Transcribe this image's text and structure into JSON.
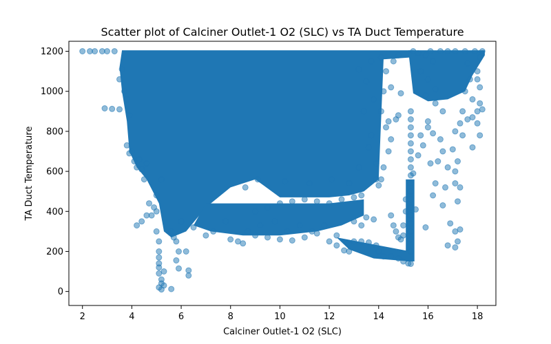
{
  "chart_data": {
    "type": "scatter",
    "title": "Scatter plot of Calciner Outlet-1 O2 (SLC) vs TA Duct Temperature",
    "xlabel": "Calciner Outlet-1 O2 (SLC)",
    "ylabel": "TA Duct Temperature",
    "xlim": [
      1.45,
      18.75
    ],
    "ylim": [
      -70,
      1250
    ],
    "xticks": [
      2,
      4,
      6,
      8,
      10,
      12,
      14,
      16,
      18
    ],
    "yticks": [
      0,
      200,
      400,
      600,
      800,
      1000,
      1200
    ],
    "grid": false,
    "color": "#1f77b4",
    "alpha": 0.5,
    "series": [
      {
        "points": [
          [
            2.0,
            1200
          ],
          [
            2.3,
            1200
          ],
          [
            2.5,
            1200
          ],
          [
            2.8,
            1200
          ],
          [
            3.0,
            1200
          ],
          [
            3.3,
            1200
          ],
          [
            2.9,
            915
          ],
          [
            3.2,
            912
          ],
          [
            3.5,
            910
          ],
          [
            3.5,
            1060
          ],
          [
            3.6,
            1110
          ],
          [
            3.7,
            1000
          ],
          [
            3.8,
            960
          ],
          [
            3.9,
            880
          ],
          [
            3.8,
            730
          ],
          [
            3.9,
            690
          ],
          [
            4.0,
            700
          ],
          [
            4.1,
            650
          ],
          [
            4.2,
            620
          ],
          [
            4.3,
            660
          ],
          [
            4.4,
            610
          ],
          [
            4.5,
            560
          ],
          [
            4.6,
            640
          ],
          [
            4.2,
            330
          ],
          [
            4.4,
            350
          ],
          [
            4.6,
            380
          ],
          [
            4.7,
            440
          ],
          [
            4.8,
            380
          ],
          [
            4.9,
            420
          ],
          [
            5.0,
            480
          ],
          [
            5.0,
            400
          ],
          [
            5.0,
            300
          ],
          [
            5.1,
            250
          ],
          [
            5.1,
            200
          ],
          [
            5.1,
            170
          ],
          [
            5.1,
            140
          ],
          [
            5.1,
            120
          ],
          [
            5.1,
            90
          ],
          [
            5.2,
            60
          ],
          [
            5.2,
            40
          ],
          [
            5.1,
            20
          ],
          [
            5.2,
            10
          ],
          [
            5.3,
            30
          ],
          [
            5.3,
            100
          ],
          [
            5.2,
            560
          ],
          [
            5.6,
            300
          ],
          [
            5.7,
            270
          ],
          [
            5.8,
            250
          ],
          [
            5.9,
            200
          ],
          [
            5.8,
            155
          ],
          [
            5.9,
            115
          ],
          [
            6.3,
            105
          ],
          [
            6.3,
            80
          ],
          [
            6.2,
            200
          ],
          [
            5.6,
            12
          ],
          [
            6.0,
            350
          ],
          [
            6.5,
            320
          ],
          [
            7.0,
            280
          ],
          [
            7.3,
            300
          ],
          [
            7.8,
            350
          ],
          [
            8.0,
            260
          ],
          [
            8.3,
            250
          ],
          [
            8.5,
            240
          ],
          [
            9.0,
            280
          ],
          [
            9.5,
            270
          ],
          [
            10.0,
            260
          ],
          [
            10.5,
            255
          ],
          [
            11.0,
            270
          ],
          [
            11.5,
            290
          ],
          [
            12.0,
            250
          ],
          [
            8.7,
            300
          ],
          [
            9.2,
            330
          ],
          [
            9.8,
            350
          ],
          [
            10.3,
            300
          ],
          [
            10.8,
            330
          ],
          [
            11.3,
            300
          ],
          [
            11.8,
            330
          ],
          [
            12.3,
            280
          ],
          [
            9.0,
            400
          ],
          [
            9.5,
            420
          ],
          [
            10.0,
            440
          ],
          [
            10.5,
            450
          ],
          [
            11.0,
            460
          ],
          [
            11.5,
            450
          ],
          [
            12.0,
            440
          ],
          [
            12.5,
            460
          ],
          [
            13.0,
            470
          ],
          [
            13.3,
            480
          ],
          [
            8.6,
            520
          ],
          [
            9.1,
            560
          ],
          [
            10.2,
            550
          ],
          [
            11.2,
            540
          ],
          [
            12.1,
            560
          ],
          [
            12.8,
            540
          ],
          [
            12.3,
            230
          ],
          [
            12.6,
            205
          ],
          [
            12.8,
            200
          ],
          [
            13.0,
            250
          ],
          [
            13.3,
            250
          ],
          [
            13.6,
            245
          ],
          [
            13.9,
            230
          ],
          [
            14.0,
            200
          ],
          [
            14.2,
            175
          ],
          [
            14.5,
            175
          ],
          [
            14.8,
            165
          ],
          [
            15.0,
            150
          ],
          [
            15.2,
            140
          ],
          [
            15.3,
            138
          ],
          [
            13.3,
            330
          ],
          [
            13.5,
            370
          ],
          [
            13.8,
            360
          ],
          [
            13.0,
            350
          ],
          [
            14.0,
            530
          ],
          [
            14.1,
            560
          ],
          [
            14.2,
            620
          ],
          [
            14.4,
            700
          ],
          [
            14.5,
            760
          ],
          [
            14.3,
            820
          ],
          [
            14.4,
            850
          ],
          [
            14.7,
            860
          ],
          [
            14.8,
            880
          ],
          [
            14.1,
            900
          ],
          [
            14.2,
            1000
          ],
          [
            14.5,
            1020
          ],
          [
            14.9,
            990
          ],
          [
            14.3,
            1100
          ],
          [
            14.6,
            1150
          ],
          [
            14.1,
            1170
          ],
          [
            14.8,
            1180
          ],
          [
            14.5,
            380
          ],
          [
            14.6,
            330
          ],
          [
            14.7,
            300
          ],
          [
            14.8,
            270
          ],
          [
            14.9,
            260
          ],
          [
            15.0,
            280
          ],
          [
            15.0,
            330
          ],
          [
            15.1,
            400
          ],
          [
            15.1,
            460
          ],
          [
            15.3,
            200
          ],
          [
            15.3,
            260
          ],
          [
            15.3,
            300
          ],
          [
            15.3,
            340
          ],
          [
            15.3,
            380
          ],
          [
            15.3,
            420
          ],
          [
            15.3,
            460
          ],
          [
            15.3,
            500
          ],
          [
            15.3,
            540
          ],
          [
            15.3,
            580
          ],
          [
            15.3,
            620
          ],
          [
            15.3,
            660
          ],
          [
            15.3,
            700
          ],
          [
            15.3,
            740
          ],
          [
            15.3,
            780
          ],
          [
            15.3,
            820
          ],
          [
            15.3,
            860
          ],
          [
            15.3,
            900
          ],
          [
            15.5,
            410
          ],
          [
            15.4,
            590
          ],
          [
            15.6,
            680
          ],
          [
            15.7,
            780
          ],
          [
            15.8,
            730
          ],
          [
            16.0,
            850
          ],
          [
            15.4,
            1200
          ],
          [
            15.6,
            1190
          ],
          [
            15.9,
            1180
          ],
          [
            16.2,
            1150
          ],
          [
            15.7,
            1100
          ],
          [
            16.0,
            1060
          ],
          [
            16.3,
            1010
          ],
          [
            15.9,
            980
          ],
          [
            16.3,
            940
          ],
          [
            16.6,
            900
          ],
          [
            16.0,
            820
          ],
          [
            16.2,
            790
          ],
          [
            16.5,
            760
          ],
          [
            16.6,
            700
          ],
          [
            16.4,
            650
          ],
          [
            16.1,
            640
          ],
          [
            16.8,
            620
          ],
          [
            16.3,
            540
          ],
          [
            16.7,
            520
          ],
          [
            15.9,
            320
          ],
          [
            16.2,
            480
          ],
          [
            16.6,
            430
          ],
          [
            16.8,
            230
          ],
          [
            17.1,
            220
          ],
          [
            16.9,
            340
          ],
          [
            17.1,
            300
          ],
          [
            17.2,
            250
          ],
          [
            17.3,
            310
          ],
          [
            17.2,
            450
          ],
          [
            17.1,
            600
          ],
          [
            17.3,
            520
          ],
          [
            17.1,
            540
          ],
          [
            17.4,
            780
          ],
          [
            17.3,
            840
          ],
          [
            17.0,
            710
          ],
          [
            17.2,
            650
          ],
          [
            17.1,
            800
          ],
          [
            17.6,
            860
          ],
          [
            17.8,
            870
          ],
          [
            17.4,
            900
          ],
          [
            17.8,
            960
          ],
          [
            18.0,
            900
          ],
          [
            18.1,
            940
          ],
          [
            18.2,
            910
          ],
          [
            17.5,
            1000
          ],
          [
            17.7,
            1060
          ],
          [
            18.0,
            1060
          ],
          [
            18.1,
            1020
          ],
          [
            18.0,
            1100
          ],
          [
            17.6,
            1140
          ],
          [
            18.1,
            1170
          ],
          [
            18.2,
            1200
          ],
          [
            17.9,
            1200
          ],
          [
            17.5,
            1200
          ],
          [
            17.1,
            1200
          ],
          [
            16.8,
            1200
          ],
          [
            16.5,
            1200
          ],
          [
            16.1,
            1200
          ],
          [
            18.1,
            780
          ],
          [
            17.8,
            720
          ],
          [
            18.0,
            840
          ],
          [
            13.5,
            1050
          ],
          [
            13.7,
            1150
          ],
          [
            13.2,
            1110
          ],
          [
            13.8,
            960
          ],
          [
            13.4,
            900
          ],
          [
            13.7,
            780
          ],
          [
            13.6,
            720
          ],
          [
            13.9,
            640
          ],
          [
            13.2,
            620
          ],
          [
            13.9,
            560
          ]
        ]
      }
    ]
  }
}
